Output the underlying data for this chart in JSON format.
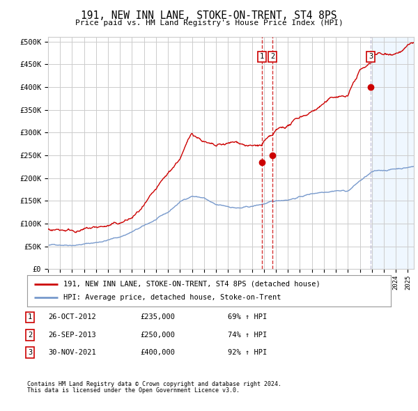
{
  "title": "191, NEW INN LANE, STOKE-ON-TRENT, ST4 8PS",
  "subtitle": "Price paid vs. HM Land Registry's House Price Index (HPI)",
  "ylabel_ticks": [
    "£0",
    "£50K",
    "£100K",
    "£150K",
    "£200K",
    "£250K",
    "£300K",
    "£350K",
    "£400K",
    "£450K",
    "£500K"
  ],
  "ytick_values": [
    0,
    50000,
    100000,
    150000,
    200000,
    250000,
    300000,
    350000,
    400000,
    450000,
    500000
  ],
  "ylim": [
    0,
    510000
  ],
  "xlim_start": 1995.0,
  "xlim_end": 2025.5,
  "sale_dates": [
    2012.82,
    2013.73,
    2021.92
  ],
  "sale_prices": [
    235000,
    250000,
    400000
  ],
  "sale_labels": [
    "1",
    "2",
    "3"
  ],
  "legend_house": "191, NEW INN LANE, STOKE-ON-TRENT, ST4 8PS (detached house)",
  "legend_hpi": "HPI: Average price, detached house, Stoke-on-Trent",
  "table_rows": [
    {
      "label": "1",
      "date": "26-OCT-2012",
      "price": "£235,000",
      "pct": "69% ↑ HPI"
    },
    {
      "label": "2",
      "date": "26-SEP-2013",
      "price": "£250,000",
      "pct": "74% ↑ HPI"
    },
    {
      "label": "3",
      "date": "30-NOV-2021",
      "price": "£400,000",
      "pct": "92% ↑ HPI"
    }
  ],
  "footnote1": "Contains HM Land Registry data © Crown copyright and database right 2024.",
  "footnote2": "This data is licensed under the Open Government Licence v3.0.",
  "house_line_color": "#cc0000",
  "hpi_line_color": "#7799cc",
  "vline_color_red": "#cc0000",
  "vline_color_gray": "#aaaacc",
  "grid_color": "#cccccc",
  "background_color": "#ffffff",
  "plot_bg_color": "#ffffff",
  "shade_color": "#ddeeff",
  "shade_start": 2022.0
}
